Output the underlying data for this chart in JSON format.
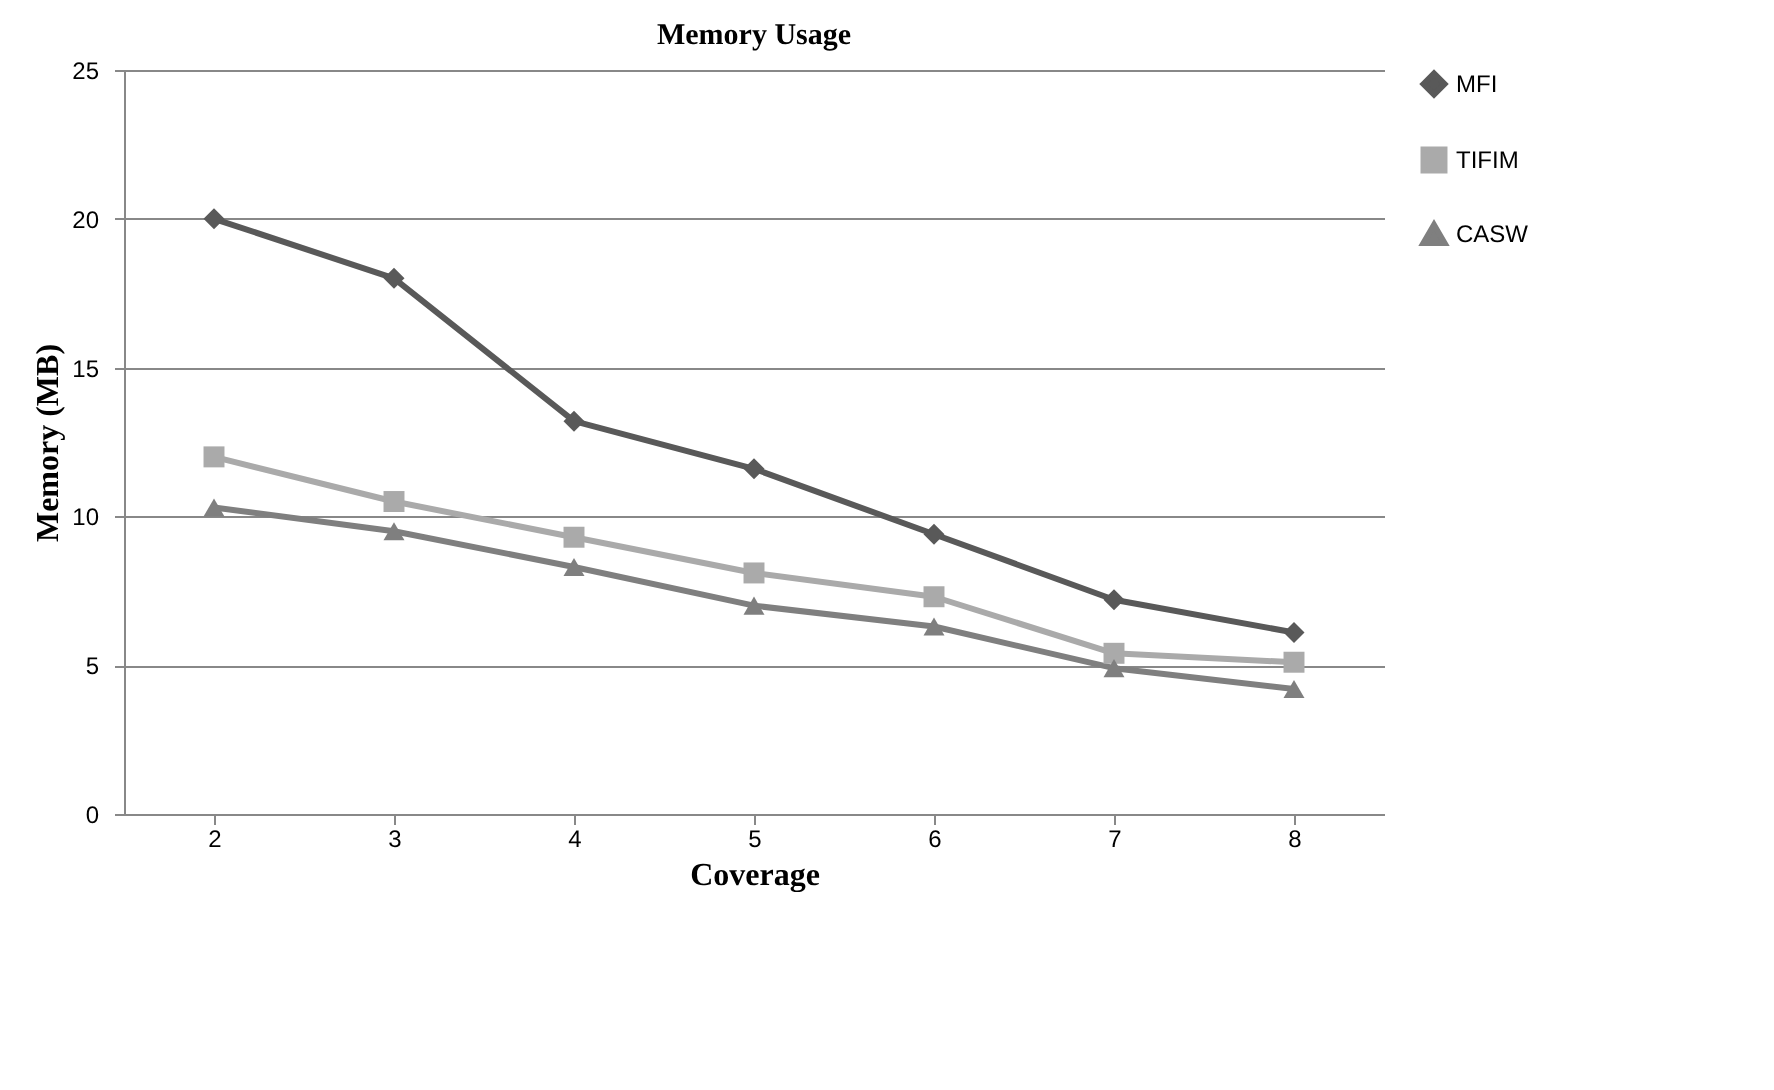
{
  "chart_data": {
    "type": "line",
    "title": "Memory Usage",
    "xlabel": "Coverage",
    "ylabel": "Memory (MB)",
    "categories": [
      "2",
      "3",
      "4",
      "5",
      "6",
      "7",
      "8"
    ],
    "series": [
      {
        "name": "MFI",
        "color": "#595959",
        "marker": "diamond",
        "values": [
          20,
          18,
          13.2,
          11.6,
          9.4,
          7.2,
          6.1
        ]
      },
      {
        "name": "TIFIM",
        "color": "#aaaaaa",
        "marker": "square",
        "values": [
          12,
          10.5,
          9.3,
          8.1,
          7.3,
          5.4,
          5.1
        ]
      },
      {
        "name": "CASW",
        "color": "#7f7f7f",
        "marker": "triangle",
        "values": [
          10.3,
          9.5,
          8.3,
          7.0,
          6.3,
          4.9,
          4.2
        ]
      }
    ],
    "ylim": [
      0,
      25
    ],
    "yticks": [
      0,
      5,
      10,
      15,
      20,
      25
    ],
    "grid": "y",
    "legend": "top right"
  }
}
